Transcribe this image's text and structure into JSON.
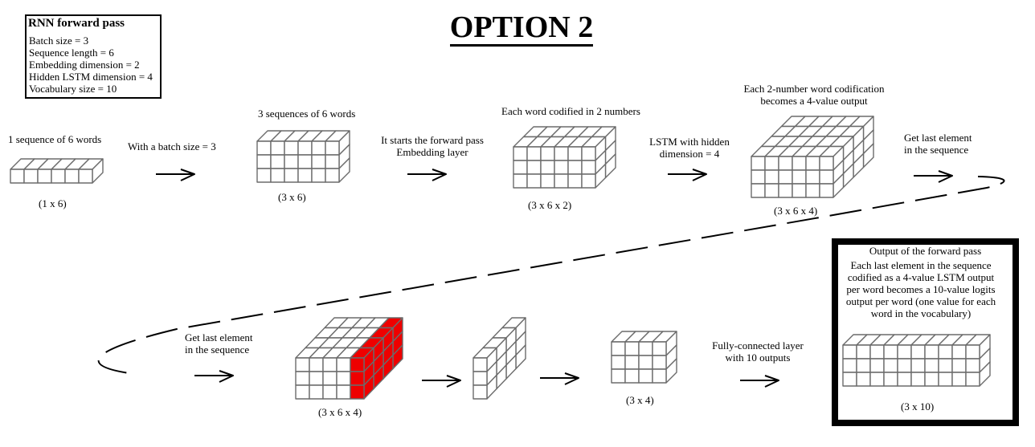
{
  "title": "OPTION 2",
  "params": {
    "heading": "RNN forward pass",
    "lines": [
      "Batch size = 3",
      "Sequence length = 6",
      "Embedding dimension = 2",
      "Hidden LSTM dimension = 4",
      "Vocabulary size = 10"
    ]
  },
  "steps": {
    "s1": {
      "caption": "1 sequence of 6 words",
      "shape": "(1 x 6)"
    },
    "t1": {
      "caption": "With a batch size = 3"
    },
    "s2": {
      "caption": "3 sequences of 6 words",
      "shape": "(3 x 6)"
    },
    "t2": {
      "line1": "It starts the forward pass",
      "line2": "Embedding layer"
    },
    "s3": {
      "caption": "Each word codified in 2 numbers",
      "shape": "(3 x 6 x 2)"
    },
    "t3": {
      "line1": "LSTM with hidden",
      "line2": "dimension = 4"
    },
    "s4": {
      "line1": "Each 2-number word codification",
      "line2": "becomes a 4-value output",
      "shape": "(3 x 6 x 4)"
    },
    "t4": {
      "line1": "Get last element",
      "line2": "in the sequence"
    },
    "t5": {
      "line1": "Get last element",
      "line2": "in the sequence"
    },
    "s5": {
      "shape": "(3 x 6 x 4)"
    },
    "s6": {
      "shape": "(3 x 4)"
    },
    "t6": {
      "line1": "Fully-connected layer",
      "line2": "with 10 outputs"
    }
  },
  "output": {
    "title": "Output of the forward pass",
    "lines": [
      "Each last element in the sequence",
      "codified as a 4-value LSTM output",
      "per word becomes a 10-value logits",
      "output per word (one value for each",
      "word in the vocabulary)"
    ],
    "shape": "(3 x 10)"
  },
  "colors": {
    "grid": "#6b6b6b",
    "highlight": "#ee0000",
    "ink": "#000000"
  }
}
